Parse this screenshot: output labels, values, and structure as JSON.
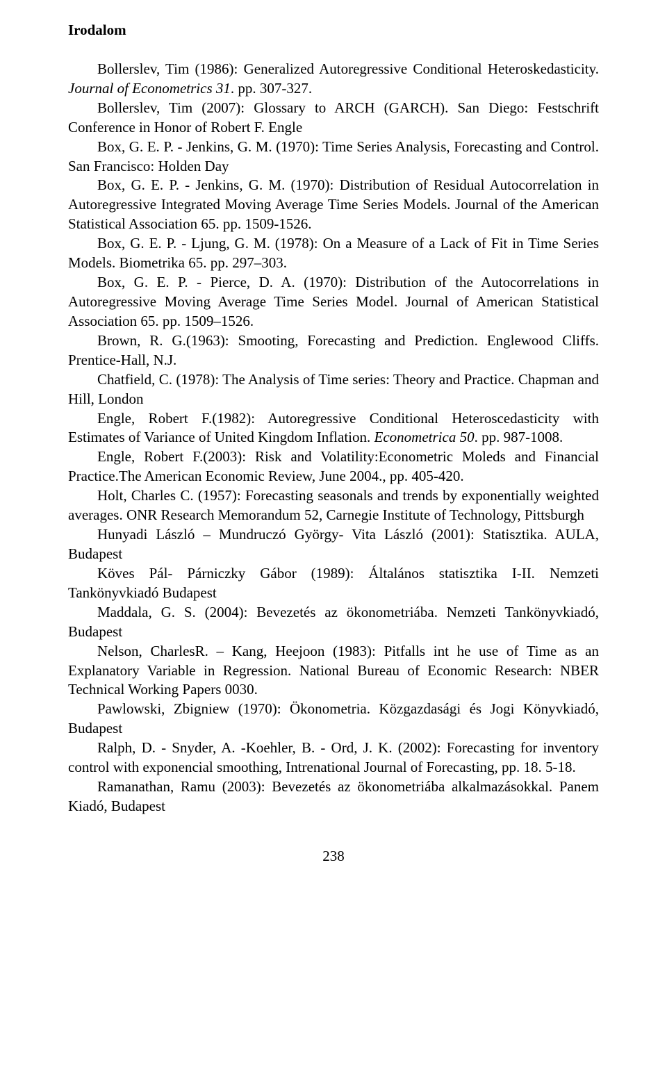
{
  "heading": "Irodalom",
  "entries": [
    {
      "pre": "Bollerslev, Tim (1986): Generalized Autoregressive Conditional Heteroskedasticity. ",
      "it": "Journal of Econometrics 31",
      "post": ". pp. 307-327."
    },
    {
      "pre": "Bollerslev, Tim (2007): Glossary to ARCH (GARCH). San Diego: Festschrift Conference in Honor of Robert F. Engle",
      "it": "",
      "post": ""
    },
    {
      "pre": "Box, G. E. P. - Jenkins, G. M. (1970): Time Series Analysis, Forecasting and Control. San Francisco: Holden Day",
      "it": "",
      "post": ""
    },
    {
      "pre": "Box, G. E. P. - Jenkins, G. M. (1970): Distribution of Residual Autocorrelation in Autoregressive Integrated Moving Average Time Series Models. Journal of the American Statistical Association 65. pp. 1509-1526.",
      "it": "",
      "post": ""
    },
    {
      "pre": "Box, G. E. P. - Ljung, G. M. (1978): On a Measure of a Lack of Fit in Time Series Models. Biometrika 65. pp. 297–303.",
      "it": "",
      "post": ""
    },
    {
      "pre": "Box, G. E. P. - Pierce, D. A. (1970): Distribution of the Autocorrelations in Autoregressive Moving Average Time Series Model. Journal of American Statistical Association 65. pp. 1509–1526.",
      "it": "",
      "post": ""
    },
    {
      "pre": "Brown, R. G.(1963): Smooting, Forecasting and Prediction. Englewood Cliffs. Prentice-Hall, N.J.",
      "it": "",
      "post": ""
    },
    {
      "pre": "Chatfield, C. (1978): The Analysis of Time series: Theory and Practice. Chapman and Hill, London",
      "it": "",
      "post": ""
    },
    {
      "pre": "Engle, Robert F.(1982):  Autoregressive Conditional Heteroscedasticity with Estimates of Variance of United Kingdom Inflation.  ",
      "it": "Econometrica 50",
      "post": ". pp. 987-1008."
    },
    {
      "pre": "Engle, Robert F.(2003): Risk and Volatility:Econometric Moleds and Financial Practice.The American Economic Review, June 2004., pp. 405-420.",
      "it": "",
      "post": ""
    },
    {
      "pre": "Holt, Charles C. (1957): Forecasting seasonals and trends by exponentially weighted averages. ONR Research Memorandum 52, Carnegie Institute of Technology, Pittsburgh",
      "it": "",
      "post": ""
    },
    {
      "pre": "Hunyadi László – Mundruczó György- Vita László (2001): Statisztika. AULA, Budapest",
      "it": "",
      "post": ""
    },
    {
      "pre": "Köves Pál- Párniczky Gábor (1989): Általános statisztika I-II. Nemzeti Tankönyvkiadó Budapest",
      "it": "",
      "post": ""
    },
    {
      "pre": "Maddala, G. S. (2004): Bevezetés az ökonometriába. Nemzeti Tankönyvkiadó, Budapest",
      "it": "",
      "post": ""
    },
    {
      "pre": "Nelson, CharlesR. – Kang, Heejoon (1983): Pitfalls int he use of Time as an Explanatory Variable in Regression. National Bureau of Economic Research: NBER Technical Working Papers 0030.",
      "it": "",
      "post": ""
    },
    {
      "pre": "Pawlowski, Zbigniew (1970): Ökonometria. Közgazdasági és Jogi Könyvkiadó, Budapest",
      "it": "",
      "post": ""
    },
    {
      "pre": "Ralph, D. - Snyder, A. -Koehler, B. - Ord, J. K. (2002): Forecasting for inventory control with exponencial smoothing, Intrenational Journal of Forecasting, pp. 18.  5-18.",
      "it": "",
      "post": ""
    },
    {
      "pre": "Ramanathan, Ramu (2003): Bevezetés az ökonometriába alkalmazásokkal. Panem Kiadó, Budapest",
      "it": "",
      "post": ""
    }
  ],
  "pageNumber": "238",
  "colors": {
    "text": "#000000",
    "background": "#ffffff"
  },
  "fontsize_pt": 16,
  "font_family": "Book Antiqua / Palatino"
}
